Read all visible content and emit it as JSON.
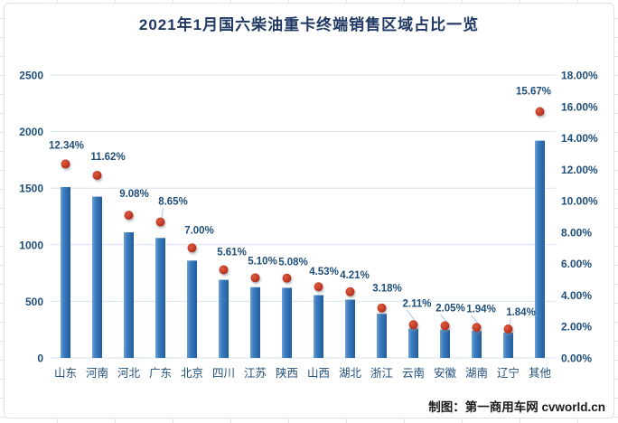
{
  "title": "2021年1月国六柴油重卡终端销售区域占比一览",
  "credit": "制图：第一商用车网 cvworld.cn",
  "colors": {
    "bar_blue": "#2e75b6",
    "bar_blue_light": "#6fa3d8",
    "bar_blue_dark": "#215c9c",
    "marker_red": "#c23a24",
    "marker_red_light": "#dd5b3e",
    "marker_red_dark": "#992717",
    "label_navy": "#1f4e79",
    "title_navy": "#1f3864",
    "gridline": "#d6e2f2",
    "leader_line": "#a8c6e5"
  },
  "chart_data": {
    "type": "bar",
    "subtype": "combo: bars on left count axis + red dot markers with data labels on right percent axis",
    "title": "2021年1月国六柴油重卡终端销售区域占比一览",
    "categories": [
      "山东",
      "河南",
      "河北",
      "广东",
      "北京",
      "四川",
      "江苏",
      "陕西",
      "山西",
      "湖北",
      "浙江",
      "云南",
      "安徽",
      "湖南",
      "辽宁",
      "其他"
    ],
    "series": [
      {
        "name": "terminal-sales-volume-bars",
        "axis": "left",
        "values_estimated": [
          1510,
          1425,
          1110,
          1060,
          860,
          690,
          625,
          620,
          555,
          515,
          390,
          260,
          250,
          240,
          225,
          1920
        ]
      },
      {
        "name": "share-percent-markers",
        "axis": "right",
        "values": [
          12.34,
          11.62,
          9.08,
          8.65,
          7.0,
          5.61,
          5.1,
          5.08,
          4.53,
          4.21,
          3.18,
          2.11,
          2.05,
          1.94,
          1.84,
          15.67
        ],
        "data_labels": [
          "12.34%",
          "11.62%",
          "9.08%",
          "8.65%",
          "7.00%",
          "5.61%",
          "5.10%",
          "5.08%",
          "4.53%",
          "4.21%",
          "3.18%",
          "2.11%",
          "2.05%",
          "1.94%",
          "1.84%",
          "15.67%"
        ]
      }
    ],
    "left_axis": {
      "min": 0,
      "max": 2500,
      "step": 500,
      "ticks": [
        "0",
        "500",
        "1000",
        "1500",
        "2000",
        "2500"
      ]
    },
    "right_axis": {
      "min": 0,
      "max": 18,
      "step": 2,
      "ticks": [
        "0.00%",
        "2.00%",
        "4.00%",
        "6.00%",
        "8.00%",
        "10.00%",
        "12.00%",
        "14.00%",
        "16.00%",
        "18.00%"
      ]
    },
    "grid": true,
    "legend": "none"
  }
}
